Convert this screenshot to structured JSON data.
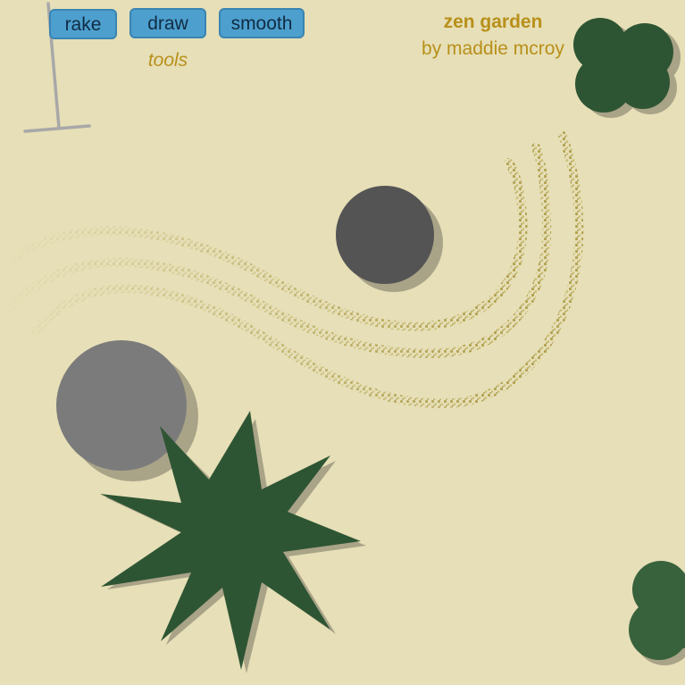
{
  "toolbar": {
    "tools": [
      {
        "id": "rake",
        "label": "rake"
      },
      {
        "id": "draw",
        "label": "draw"
      },
      {
        "id": "smooth",
        "label": "smooth"
      }
    ],
    "section_label": "tools"
  },
  "header": {
    "title": "zen garden",
    "byline": "by maddie mcroy"
  },
  "colors": {
    "sand": "#e6dfb7",
    "rake_marks": "#b3a24d",
    "rock_dark": "#545454",
    "rock_light": "#7b7b7b",
    "shadow": "#a9a388",
    "plant": "#2e5533",
    "bush_right": "#38623c",
    "rake_tool": "#a8a8a8",
    "button_fill": "#4d9fce",
    "text_gold": "#b8901a"
  },
  "icons": [
    "rake-icon",
    "rock-icon",
    "star-plant-icon",
    "bush-icon"
  ]
}
